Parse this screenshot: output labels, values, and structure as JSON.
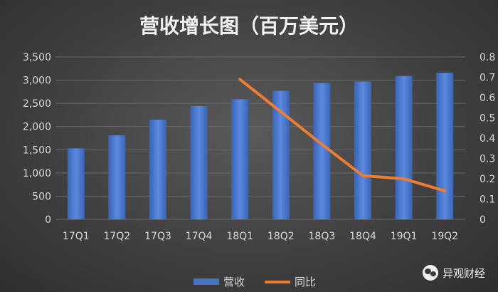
{
  "chart_data": {
    "type": "bar+line",
    "title": "营收增长图（百万美元）",
    "categories": [
      "17Q1",
      "17Q2",
      "17Q3",
      "17Q4",
      "18Q1",
      "18Q2",
      "18Q3",
      "18Q4",
      "19Q1",
      "19Q2"
    ],
    "series": [
      {
        "name": "营收",
        "type": "bar",
        "axis": "left",
        "values": [
          1530,
          1810,
          2150,
          2440,
          2590,
          2770,
          2940,
          2970,
          3090,
          3160
        ]
      },
      {
        "name": "同比",
        "type": "line",
        "axis": "right",
        "values": [
          null,
          null,
          null,
          null,
          0.69,
          0.53,
          0.37,
          0.215,
          0.2,
          0.14
        ]
      }
    ],
    "y_left": {
      "min": 0,
      "max": 3500,
      "step": 500,
      "ticks": [
        "0",
        "500",
        "1,000",
        "1,500",
        "2,000",
        "2,500",
        "3,000",
        "3,500"
      ]
    },
    "y_right": {
      "min": 0,
      "max": 0.8,
      "step": 0.1,
      "ticks": [
        "0",
        "0.1",
        "0.2",
        "0.3",
        "0.4",
        "0.5",
        "0.6",
        "0.7",
        "0.8"
      ]
    },
    "grid": true,
    "legend": "bottom",
    "colors": {
      "bar": "#4472c4",
      "line": "#ed7d31",
      "text": "#d9d9d9",
      "title": "#f2f2f2",
      "grid": "#6a6a6a"
    }
  },
  "watermark": {
    "text": "异观财经",
    "icon": "wechat-icon"
  }
}
